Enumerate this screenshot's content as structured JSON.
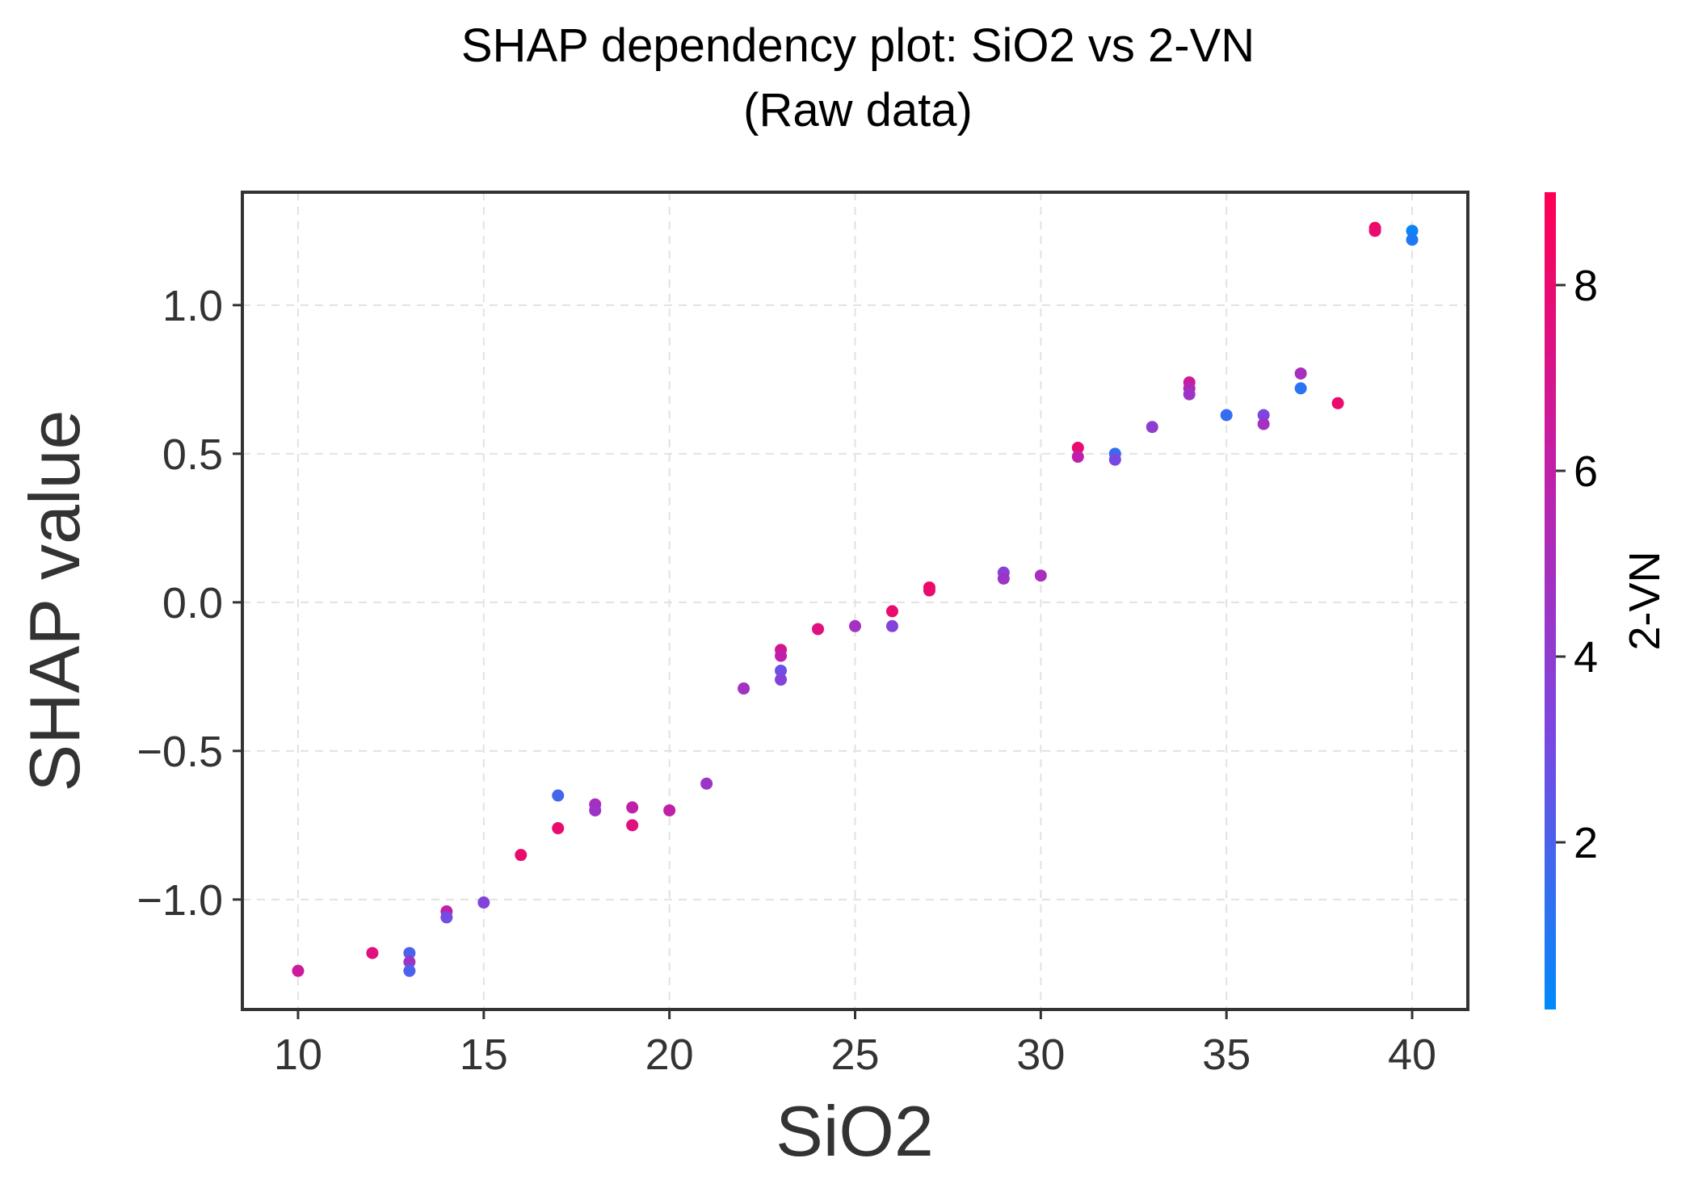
{
  "chart_data": {
    "type": "scatter",
    "title_line1": "SHAP dependency plot: SiO2 vs 2-VN",
    "title_line2": "(Raw data)",
    "xlabel": "SiO2",
    "ylabel": "SHAP value",
    "xlim": [
      8.5,
      41.5
    ],
    "ylim": [
      -1.37,
      1.38
    ],
    "xticks": [
      10,
      15,
      20,
      25,
      30,
      35,
      40
    ],
    "xtick_labels": [
      "10",
      "15",
      "20",
      "25",
      "30",
      "35",
      "40"
    ],
    "yticks": [
      1.0,
      0.5,
      0.0,
      -0.5,
      -1.0
    ],
    "ytick_labels": [
      "1.0",
      "0.5",
      "0.0",
      "−0.5",
      "−1.0"
    ],
    "grid": true,
    "colorbar": {
      "label": "2-VN",
      "range": [
        0.2,
        9.0
      ],
      "ticks": [
        2,
        4,
        6,
        8
      ],
      "tick_labels": [
        "2",
        "4",
        "6",
        "8"
      ],
      "colors": [
        "#008afb",
        "#7a48e2",
        "#c21fa8",
        "#ff0052"
      ]
    },
    "points": [
      {
        "x": 10,
        "y": -1.24,
        "c": 6.5
      },
      {
        "x": 12,
        "y": -1.18,
        "c": 7.5
      },
      {
        "x": 13,
        "y": -1.18,
        "c": 2.0
      },
      {
        "x": 13,
        "y": -1.21,
        "c": 4.5
      },
      {
        "x": 13,
        "y": -1.24,
        "c": 2.0
      },
      {
        "x": 14,
        "y": -1.04,
        "c": 6.0
      },
      {
        "x": 14,
        "y": -1.06,
        "c": 3.0
      },
      {
        "x": 15,
        "y": -1.01,
        "c": 3.5
      },
      {
        "x": 16,
        "y": -0.85,
        "c": 8.0
      },
      {
        "x": 17,
        "y": -0.65,
        "c": 1.8
      },
      {
        "x": 17,
        "y": -0.76,
        "c": 8.0
      },
      {
        "x": 18,
        "y": -0.68,
        "c": 5.0
      },
      {
        "x": 18,
        "y": -0.7,
        "c": 4.5
      },
      {
        "x": 19,
        "y": -0.69,
        "c": 6.0
      },
      {
        "x": 19,
        "y": -0.75,
        "c": 7.5
      },
      {
        "x": 20,
        "y": -0.7,
        "c": 6.0
      },
      {
        "x": 21,
        "y": -0.61,
        "c": 4.5
      },
      {
        "x": 22,
        "y": -0.29,
        "c": 4.8
      },
      {
        "x": 23,
        "y": -0.16,
        "c": 7.0
      },
      {
        "x": 23,
        "y": -0.18,
        "c": 6.0
      },
      {
        "x": 23,
        "y": -0.23,
        "c": 2.8
      },
      {
        "x": 23,
        "y": -0.26,
        "c": 3.5
      },
      {
        "x": 24,
        "y": -0.09,
        "c": 7.5
      },
      {
        "x": 25,
        "y": -0.08,
        "c": 4.8
      },
      {
        "x": 26,
        "y": -0.03,
        "c": 8.0
      },
      {
        "x": 26,
        "y": -0.08,
        "c": 3.5
      },
      {
        "x": 27,
        "y": 0.05,
        "c": 8.5
      },
      {
        "x": 27,
        "y": 0.04,
        "c": 8.0
      },
      {
        "x": 29,
        "y": 0.1,
        "c": 3.8
      },
      {
        "x": 29,
        "y": 0.08,
        "c": 4.5
      },
      {
        "x": 30,
        "y": 0.09,
        "c": 5.0
      },
      {
        "x": 31,
        "y": 0.52,
        "c": 8.0
      },
      {
        "x": 31,
        "y": 0.49,
        "c": 6.0
      },
      {
        "x": 32,
        "y": 0.5,
        "c": 1.5
      },
      {
        "x": 32,
        "y": 0.48,
        "c": 3.2
      },
      {
        "x": 33,
        "y": 0.59,
        "c": 4.0
      },
      {
        "x": 34,
        "y": 0.74,
        "c": 6.5
      },
      {
        "x": 34,
        "y": 0.72,
        "c": 5.5
      },
      {
        "x": 34,
        "y": 0.7,
        "c": 4.5
      },
      {
        "x": 35,
        "y": 0.63,
        "c": 1.5
      },
      {
        "x": 36,
        "y": 0.63,
        "c": 3.2
      },
      {
        "x": 36,
        "y": 0.6,
        "c": 4.8
      },
      {
        "x": 37,
        "y": 0.77,
        "c": 5.0
      },
      {
        "x": 37,
        "y": 0.72,
        "c": 1.2
      },
      {
        "x": 38,
        "y": 0.67,
        "c": 8.0
      },
      {
        "x": 39,
        "y": 1.26,
        "c": 8.5
      },
      {
        "x": 39,
        "y": 1.25,
        "c": 8.0
      },
      {
        "x": 40,
        "y": 1.25,
        "c": 0.5
      },
      {
        "x": 40,
        "y": 1.22,
        "c": 1.0
      }
    ]
  }
}
